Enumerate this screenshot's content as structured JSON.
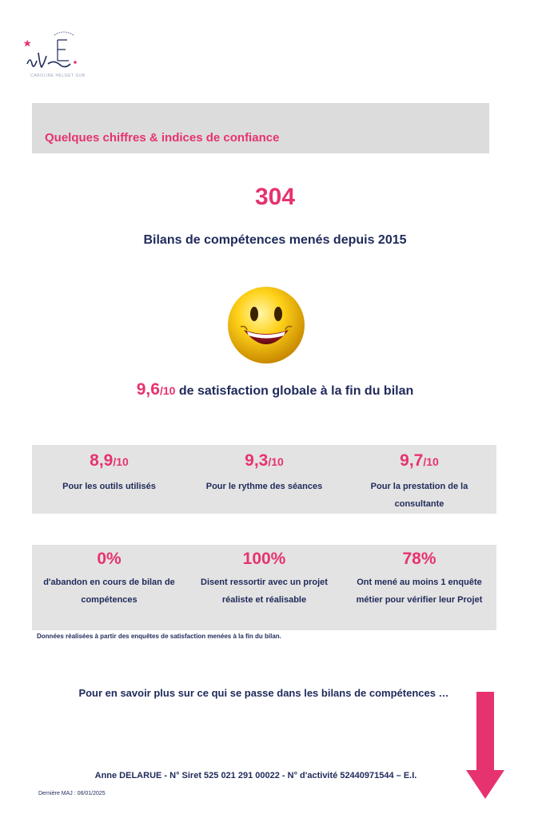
{
  "header": {
    "logo_caption": "CAROLINE HELGET·SUB",
    "banner_title": "Quelques chiffres & indices de confiance"
  },
  "hero": {
    "count": "304",
    "count_label": "Bilans de compétences menés depuis 2015",
    "satisfaction_score": "9,6",
    "satisfaction_denominator": "/10",
    "satisfaction_label": " de satisfaction globale à la fin du bilan"
  },
  "ratings": [
    {
      "value": "8,9",
      "denominator": "/10",
      "label": "Pour les outils utilisés"
    },
    {
      "value": "9,3",
      "denominator": "/10",
      "label": "Pour le rythme des séances"
    },
    {
      "value": "9,7",
      "denominator": "/10",
      "label": "Pour la prestation de la consultante"
    }
  ],
  "outcomes": [
    {
      "value": "0%",
      "label": "d'abandon en cours de bilan de compétences"
    },
    {
      "value": "100%",
      "label": "Disent ressortir avec un projet réaliste et réalisable"
    },
    {
      "value": "78%",
      "label": "Ont mené au moins 1 enquête métier pour vérifier leur Projet"
    }
  ],
  "note": "Données réalisées à partir des enquêtes de satisfaction menées à la fin du bilan.",
  "more_info": "Pour en savoir plus sur ce qui se passe dans les bilans de compétences …",
  "footer": {
    "identity": "Anne DELARUE  - N° Siret 525 021 291 00022 - N° d'activité 52440971544 – E.I.",
    "last_update": "Dernière MAJ : 06/01/2025"
  },
  "colors": {
    "accent": "#e6336f",
    "text": "#1f2a5a",
    "panel": "#e3e3e3",
    "banner": "#dcdcdc"
  }
}
